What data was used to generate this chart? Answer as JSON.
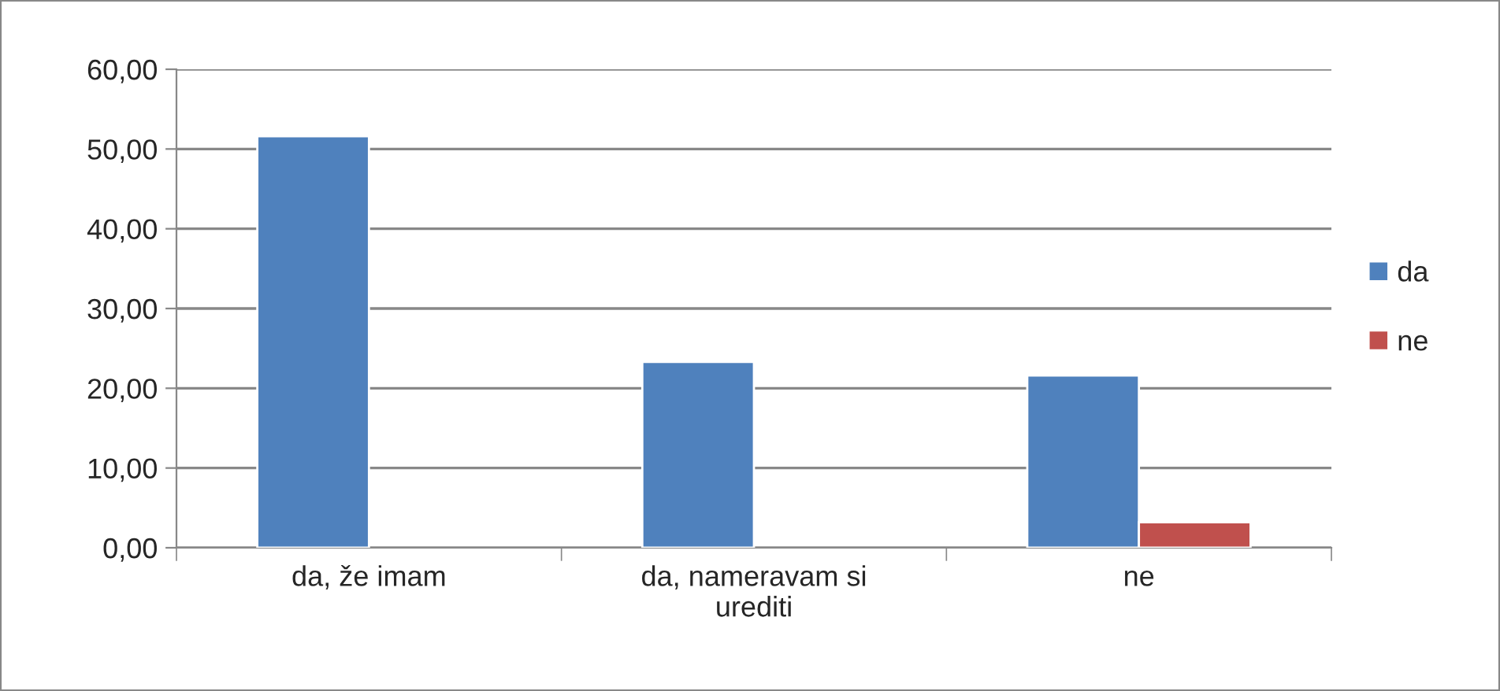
{
  "chart_data": {
    "type": "bar",
    "categories": [
      "da, že imam",
      "da, nameravam si\nurediti",
      "ne"
    ],
    "series": [
      {
        "name": "da",
        "color": "#4f81bd",
        "values": [
          51.6,
          23.3,
          21.6
        ]
      },
      {
        "name": "ne",
        "color": "#c0504d",
        "values": [
          null,
          null,
          3.2
        ]
      }
    ],
    "ylim": [
      0,
      60
    ],
    "yticks": [
      {
        "value": 0,
        "label": "0,00"
      },
      {
        "value": 10,
        "label": "10,00"
      },
      {
        "value": 20,
        "label": "20,00"
      },
      {
        "value": 30,
        "label": "30,00"
      },
      {
        "value": 40,
        "label": "40,00"
      },
      {
        "value": 50,
        "label": "50,00"
      },
      {
        "value": 60,
        "label": "60,00"
      }
    ],
    "grid": "y",
    "legend": "right"
  }
}
